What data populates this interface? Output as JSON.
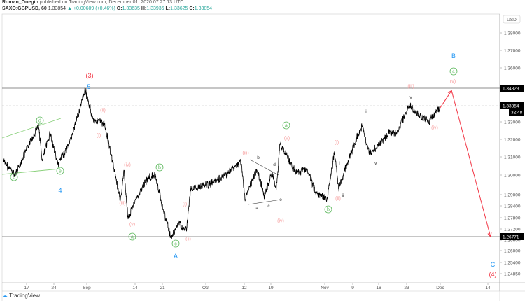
{
  "header": {
    "author": "Roman_Onegin",
    "published": "published on TradingView.com, December 01, 2020 07:27:13 UTC",
    "symbol": "SAXO:GBPUSD, 60",
    "last": "1.33854",
    "change": "+0.00609 (+0.46%)",
    "o_label": "O:",
    "o": "1.33635",
    "h_label": "H:",
    "h": "1.33936",
    "l_label": "L:",
    "l": "1.33625",
    "c_label": "C:",
    "c": "1.33854"
  },
  "currency_button": "USD",
  "logo_text": "TradingView",
  "colors": {
    "up": "#26a69a",
    "red": "#f23645",
    "pink": "#f7a0a0",
    "green": "#5cb85c",
    "blue": "#2196f3",
    "price": "#000000"
  },
  "chart_data": {
    "type": "line",
    "title": "",
    "y_ticks": [
      "1.38000",
      "1.37000",
      "1.36000",
      "1.33000",
      "1.32000",
      "1.31000",
      "1.30000",
      "1.29000",
      "1.28400",
      "1.27800",
      "1.27200",
      "1.26600",
      "1.26000",
      "1.25400",
      "1.24850"
    ],
    "x_ticks": [
      "17",
      "24",
      "Sep",
      "14",
      "21",
      "Oct",
      "12",
      "19",
      "Nov",
      "9",
      "16",
      "23",
      "Dec",
      "14"
    ],
    "price_tags": [
      {
        "value": "1.34823"
      },
      {
        "value": "1.33854",
        "timer": "32:48"
      },
      {
        "value": "1.26771"
      }
    ],
    "horizontal_levels": [
      1.34823,
      1.26771
    ],
    "current_price": 1.33854,
    "series": [
      {
        "points": [
          [
            "2020-08-11",
            1.3094
          ],
          [
            "2020-08-14",
            1.3017
          ],
          [
            "2020-08-20",
            1.3295
          ],
          [
            "2020-08-21",
            1.3094
          ],
          [
            "2020-08-23",
            1.325
          ],
          [
            "2020-08-25",
            1.3075
          ],
          [
            "2020-08-28",
            1.319
          ],
          [
            "2020-09-01",
            1.3482
          ],
          [
            "2020-09-03",
            1.3325
          ],
          [
            "2020-09-06",
            1.33
          ],
          [
            "2020-09-08",
            1.309
          ],
          [
            "2020-09-10",
            1.288
          ],
          [
            "2020-09-11",
            1.304
          ],
          [
            "2020-09-12",
            1.278
          ],
          [
            "2020-09-14",
            1.288
          ],
          [
            "2020-09-17",
            1.3
          ],
          [
            "2020-09-19",
            1.302
          ],
          [
            "2020-09-21",
            1.2825
          ],
          [
            "2020-09-23",
            1.2677
          ],
          [
            "2020-09-25",
            1.275
          ],
          [
            "2020-09-27",
            1.271
          ],
          [
            "2020-09-28",
            1.294
          ],
          [
            "2020-10-02",
            1.296
          ],
          [
            "2020-10-06",
            1.3
          ],
          [
            "2020-10-11",
            1.309
          ],
          [
            "2020-10-12",
            1.288
          ],
          [
            "2020-10-15",
            1.305
          ],
          [
            "2020-10-17",
            1.29
          ],
          [
            "2020-10-19",
            1.303
          ],
          [
            "2020-10-20",
            1.294
          ],
          [
            "2020-10-21",
            1.319
          ],
          [
            "2020-10-25",
            1.303
          ],
          [
            "2020-10-28",
            1.305
          ],
          [
            "2020-10-30",
            1.292
          ],
          [
            "2020-11-02",
            1.288
          ],
          [
            "2020-11-04",
            1.315
          ],
          [
            "2020-11-05",
            1.294
          ],
          [
            "2020-11-08",
            1.313
          ],
          [
            "2020-11-11",
            1.329
          ],
          [
            "2020-11-13",
            1.313
          ],
          [
            "2020-11-18",
            1.325
          ],
          [
            "2020-11-20",
            1.325
          ],
          [
            "2020-11-23",
            1.34
          ],
          [
            "2020-11-25",
            1.336
          ],
          [
            "2020-11-28",
            1.331
          ],
          [
            "2020-12-01",
            1.3385
          ]
        ]
      }
    ],
    "projection": [
      [
        "2020-12-01",
        1.3385
      ],
      [
        "2020-12-04",
        1.3482
      ],
      [
        "2020-12-14",
        1.2677
      ]
    ],
    "annotations": [
      "(3)",
      "5",
      "(ii)",
      "(i)",
      "d",
      "c",
      "e",
      "4",
      "(iv)",
      "(iii)",
      "(v)",
      "a",
      "b",
      "(i)",
      "(ii)",
      "c",
      "A",
      "(iii)",
      "b",
      "d",
      "a",
      "c",
      "e",
      "(iv)",
      "a",
      "(v)",
      "(i)",
      "i",
      "(ii)",
      "ii",
      "b",
      "iii",
      "iv",
      "(iii)",
      "v",
      "(iv)",
      "(v)",
      "c",
      "B",
      "C",
      "(4)"
    ]
  }
}
